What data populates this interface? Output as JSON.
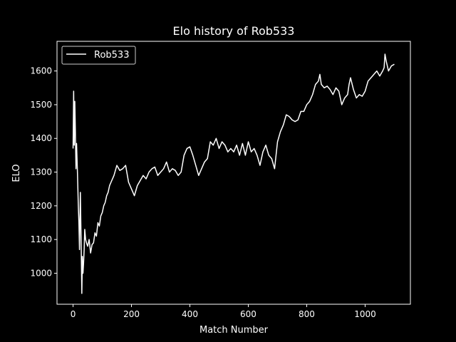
{
  "chart_data": {
    "type": "line",
    "title": "Elo history of Rob533",
    "xlabel": "Match Number",
    "ylabel": "ELO",
    "xlim": [
      -55,
      1155
    ],
    "ylim": [
      908,
      1688
    ],
    "xticks": [
      0,
      200,
      400,
      600,
      800,
      1000
    ],
    "yticks": [
      1000,
      1100,
      1200,
      1300,
      1400,
      1500,
      1600
    ],
    "grid": false,
    "legend_position": "top-left",
    "colors": {
      "background": "#000000",
      "foreground": "#ffffff",
      "line": "#ffffff"
    },
    "series": [
      {
        "name": "Rob533",
        "x": [
          0,
          2,
          4,
          6,
          8,
          10,
          12,
          15,
          18,
          20,
          22,
          25,
          28,
          30,
          32,
          34,
          36,
          38,
          40,
          43,
          46,
          50,
          55,
          60,
          65,
          70,
          75,
          80,
          85,
          90,
          95,
          100,
          105,
          110,
          115,
          120,
          125,
          130,
          140,
          150,
          160,
          170,
          180,
          190,
          200,
          210,
          220,
          230,
          240,
          250,
          260,
          270,
          280,
          290,
          300,
          310,
          320,
          330,
          340,
          350,
          360,
          370,
          380,
          390,
          400,
          410,
          420,
          430,
          440,
          450,
          460,
          470,
          480,
          490,
          500,
          510,
          520,
          530,
          540,
          550,
          560,
          570,
          580,
          590,
          600,
          610,
          620,
          630,
          640,
          650,
          660,
          670,
          680,
          690,
          700,
          710,
          720,
          730,
          740,
          750,
          760,
          770,
          780,
          790,
          800,
          810,
          820,
          830,
          840,
          845,
          850,
          860,
          870,
          880,
          890,
          900,
          910,
          920,
          930,
          940,
          945,
          950,
          960,
          970,
          980,
          990,
          1000,
          1010,
          1020,
          1030,
          1040,
          1050,
          1060,
          1065,
          1068,
          1072,
          1080,
          1090,
          1100
        ],
        "values": [
          1370,
          1540,
          1380,
          1510,
          1420,
          1310,
          1385,
          1300,
          1200,
          1150,
          1070,
          1240,
          1070,
          940,
          1050,
          1000,
          1030,
          1070,
          1130,
          1100,
          1090,
          1080,
          1100,
          1060,
          1085,
          1090,
          1120,
          1110,
          1150,
          1140,
          1170,
          1180,
          1200,
          1210,
          1230,
          1240,
          1260,
          1270,
          1290,
          1320,
          1305,
          1310,
          1320,
          1270,
          1250,
          1230,
          1260,
          1275,
          1290,
          1280,
          1300,
          1310,
          1315,
          1290,
          1300,
          1310,
          1330,
          1300,
          1310,
          1305,
          1290,
          1300,
          1350,
          1370,
          1375,
          1350,
          1320,
          1290,
          1310,
          1330,
          1340,
          1390,
          1380,
          1400,
          1370,
          1390,
          1380,
          1360,
          1370,
          1360,
          1380,
          1350,
          1385,
          1350,
          1390,
          1360,
          1370,
          1350,
          1320,
          1360,
          1380,
          1350,
          1340,
          1310,
          1390,
          1420,
          1440,
          1470,
          1465,
          1455,
          1450,
          1455,
          1480,
          1480,
          1500,
          1510,
          1530,
          1560,
          1570,
          1590,
          1560,
          1550,
          1555,
          1545,
          1530,
          1550,
          1540,
          1500,
          1520,
          1530,
          1560,
          1580,
          1545,
          1520,
          1530,
          1525,
          1540,
          1570,
          1580,
          1590,
          1600,
          1585,
          1600,
          1610,
          1650,
          1630,
          1600,
          1615,
          1620
        ]
      }
    ]
  }
}
